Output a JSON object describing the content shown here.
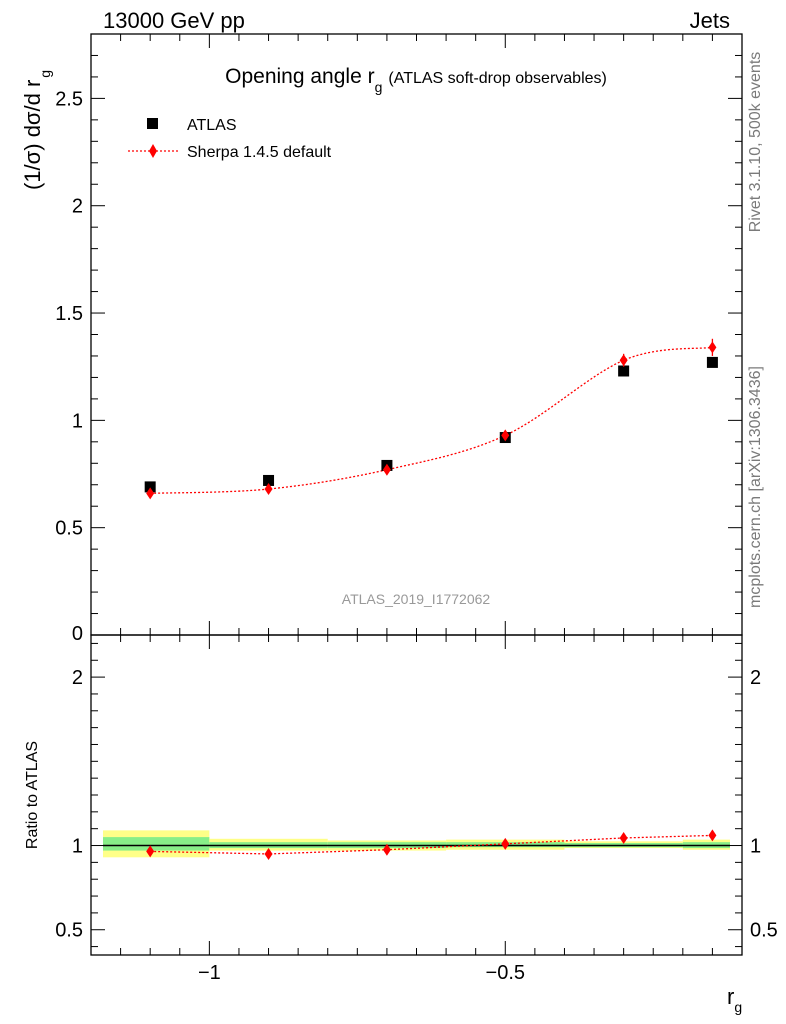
{
  "header": {
    "left": "13000 GeV pp",
    "right": "Jets"
  },
  "side_labels": {
    "rivet": "Rivet 3.1.10,  500k events",
    "mcplots": "mcplots.cern.ch [arXiv:1306.3436]"
  },
  "chart_data": [
    {
      "type": "scatter",
      "title_main": "Opening angle r",
      "title_sub": "g",
      "title_rest": "(ATLAS soft-drop observables)",
      "ylabel_main": "(1/σ) dσ/d r",
      "ylabel_sub": "g",
      "analysis_id": "ATLAS_2019_I1772062",
      "ylim": [
        0,
        2.8
      ],
      "y_ticks": [
        "0.5",
        "1",
        "1.5",
        "2",
        "2.5"
      ],
      "y_tick_values": [
        0.5,
        1,
        1.5,
        2,
        2.5
      ],
      "y_zero_label": "0",
      "xlim": [
        -1.2,
        -0.1
      ],
      "grid": false,
      "legend_position": "top-left",
      "series": [
        {
          "name": "ATLAS",
          "color": "#000000",
          "marker": "square",
          "x": [
            -1.1,
            -0.9,
            -0.7,
            -0.5,
            -0.3,
            -0.15
          ],
          "y": [
            0.69,
            0.72,
            0.79,
            0.92,
            1.23,
            1.27
          ]
        },
        {
          "name": "Sherpa 1.4.5 default",
          "color": "#ff0000",
          "marker": "diamond",
          "line": "dotted",
          "x": [
            -1.1,
            -0.9,
            -0.7,
            -0.5,
            -0.3,
            -0.15
          ],
          "y": [
            0.66,
            0.68,
            0.77,
            0.93,
            1.28,
            1.34
          ],
          "yerr": [
            0.02,
            0.02,
            0.02,
            0.02,
            0.03,
            0.04
          ]
        }
      ]
    },
    {
      "type": "scatter",
      "ylabel": "Ratio to ATLAS",
      "xlabel_main": "r",
      "xlabel_sub": "g",
      "xlim": [
        -1.2,
        -0.1
      ],
      "ylim": [
        0.35,
        2.25
      ],
      "y_ticks": [
        "0.5",
        "1",
        "2"
      ],
      "y_tick_values": [
        0.5,
        1,
        2
      ],
      "x_ticks": [
        "−1",
        "−0.5"
      ],
      "x_tick_values": [
        -1,
        -0.5
      ],
      "reference_line": 1,
      "uncertainty_bands": [
        {
          "x": [
            -1.2,
            -1.0
          ],
          "yellow": [
            0.93,
            1.09
          ],
          "green": [
            0.97,
            1.05
          ]
        },
        {
          "x": [
            -1.0,
            -0.8
          ],
          "yellow": [
            0.97,
            1.04
          ],
          "green": [
            0.985,
            1.02
          ]
        },
        {
          "x": [
            -0.8,
            -0.6
          ],
          "yellow": [
            0.97,
            1.03
          ],
          "green": [
            0.985,
            1.02
          ]
        },
        {
          "x": [
            -0.6,
            -0.4
          ],
          "yellow": [
            0.975,
            1.035
          ],
          "green": [
            0.99,
            1.02
          ]
        },
        {
          "x": [
            -0.4,
            -0.2
          ],
          "yellow": [
            0.985,
            1.025
          ],
          "green": [
            0.99,
            1.015
          ]
        },
        {
          "x": [
            -0.2,
            -0.1
          ],
          "yellow": [
            0.975,
            1.035
          ],
          "green": [
            0.985,
            1.02
          ]
        }
      ],
      "series": [
        {
          "name": "Sherpa 1.4.5 default",
          "color": "#ff0000",
          "marker": "diamond",
          "line": "dotted",
          "x": [
            -1.1,
            -0.9,
            -0.7,
            -0.5,
            -0.3,
            -0.15
          ],
          "y": [
            0.965,
            0.95,
            0.975,
            1.01,
            1.045,
            1.06
          ],
          "yerr": [
            0.02,
            0.02,
            0.02,
            0.015,
            0.015,
            0.025
          ]
        }
      ]
    }
  ]
}
